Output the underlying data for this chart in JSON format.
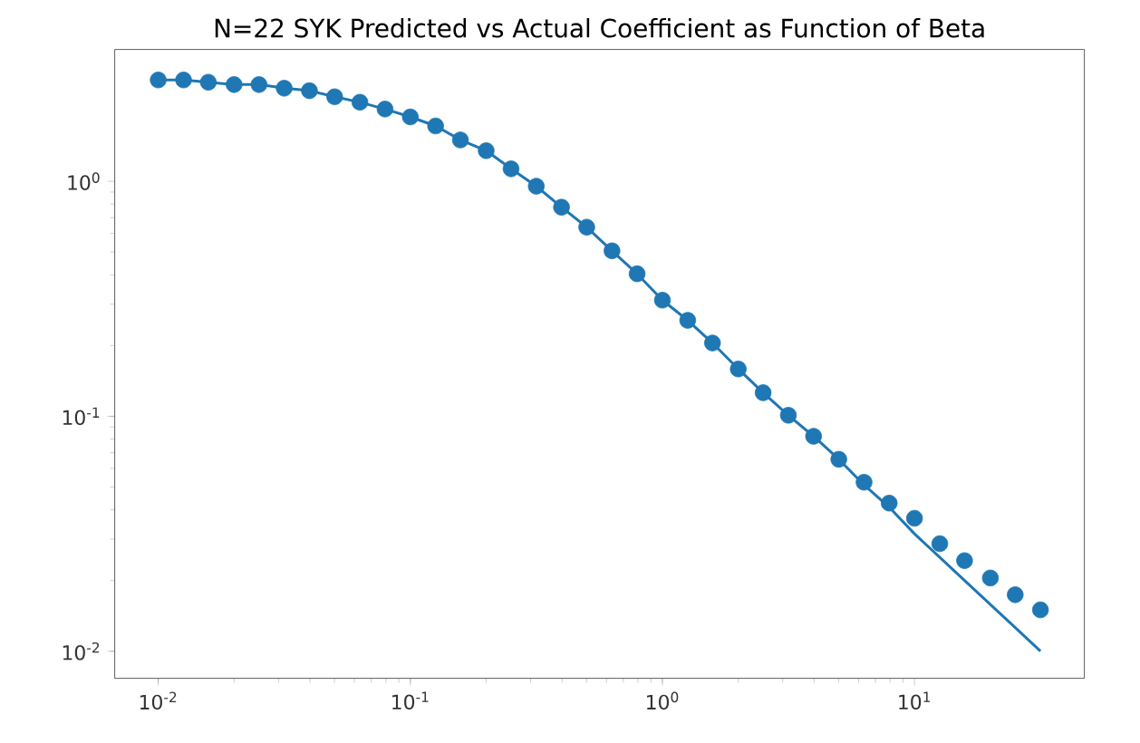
{
  "chart_data": {
    "type": "scatter",
    "title": "N=22 SYK Predicted vs Actual Coefficient as Function of Beta",
    "log": "xy",
    "x": [
      0.01,
      0.0126,
      0.0158,
      0.02,
      0.0251,
      0.0316,
      0.0398,
      0.0501,
      0.0631,
      0.0794,
      0.1,
      0.126,
      0.158,
      0.2,
      0.251,
      0.316,
      0.398,
      0.501,
      0.631,
      0.794,
      1.0,
      1.26,
      1.58,
      2.0,
      2.51,
      3.16,
      3.98,
      5.01,
      6.31,
      7.94,
      10.0,
      12.6,
      15.8,
      20.0,
      25.1,
      31.6
    ],
    "series": [
      {
        "type": "line",
        "color": "#1f77b4",
        "line_style": "solid",
        "values": [
          2.7,
          2.7,
          2.64,
          2.58,
          2.58,
          2.49,
          2.43,
          2.29,
          2.17,
          2.03,
          1.88,
          1.72,
          1.5,
          1.35,
          1.13,
          0.953,
          0.776,
          0.638,
          0.506,
          0.404,
          0.312,
          0.256,
          0.205,
          0.159,
          0.126,
          0.101,
          0.0822,
          0.0656,
          0.051,
          0.041,
          0.0316,
          0.0251,
          0.02,
          0.0158,
          0.0126,
          0.01
        ]
      },
      {
        "color": "#1f77b4",
        "marker": "circle",
        "values": [
          2.7,
          2.7,
          2.64,
          2.58,
          2.58,
          2.49,
          2.43,
          2.29,
          2.17,
          2.03,
          1.88,
          1.72,
          1.5,
          1.35,
          1.13,
          0.953,
          0.776,
          0.638,
          0.506,
          0.404,
          0.312,
          0.256,
          0.205,
          0.159,
          0.126,
          0.101,
          0.0822,
          0.0656,
          0.0524,
          0.0427,
          0.0368,
          0.0287,
          0.0243,
          0.0205,
          0.0174,
          0.015
        ]
      }
    ],
    "xlim": [
      0.00672,
      47.2
    ],
    "ylim": [
      0.00767,
      3.64
    ],
    "xticks": [
      {
        "value": 0.01,
        "label": "10$^{-2}$"
      },
      {
        "value": 0.1,
        "label": "10$^{-1}$"
      },
      {
        "value": 1,
        "label": "10$^{0}$"
      },
      {
        "value": 10,
        "label": "10$^{1}$"
      }
    ],
    "yticks": [
      {
        "value": 0.01,
        "label": "10$^{-2}$"
      },
      {
        "value": 0.1,
        "label": "10$^{-1}$"
      },
      {
        "value": 1,
        "label": "10$^{0}$"
      }
    ]
  }
}
